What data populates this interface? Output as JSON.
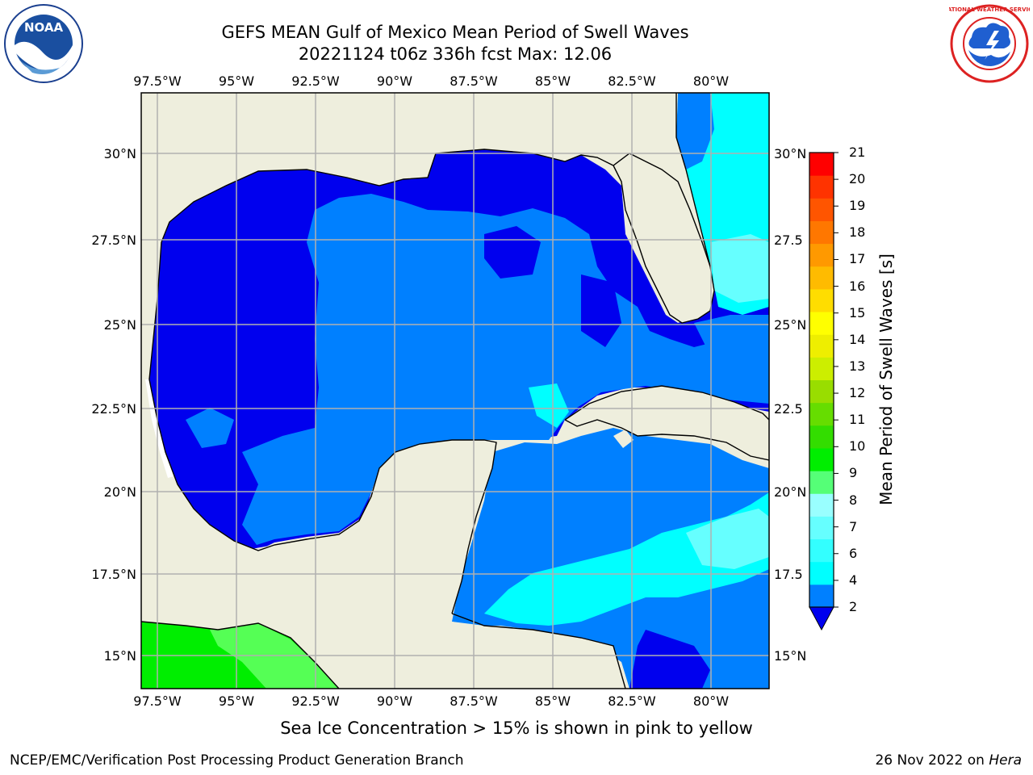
{
  "title": {
    "line1": "GEFS MEAN Gulf of Mexico Mean Period of Swell Waves",
    "line2": "20221124 t06z 336h fcst   Max: 12.06"
  },
  "map": {
    "lon_labels": [
      "97.5°W",
      "95°W",
      "92.5°W",
      "90°W",
      "87.5°W",
      "85°W",
      "82.5°W",
      "80°W"
    ],
    "lat_labels_left": [
      "30°N",
      "27.5°N",
      "25°N",
      "22.5°N",
      "20°N",
      "17.5°N",
      "15°N"
    ],
    "lat_labels_right": [
      "30°N",
      "27.5",
      "25°N",
      "22.5",
      "20°N",
      "17.5",
      "15°N"
    ],
    "colors": {
      "land": "#eeeedd",
      "water_dark": "#0000ee",
      "water_main": "#0080ff",
      "water_cyan": "#00ffff",
      "water_lightcyan": "#66ffff",
      "green": "#00ee00",
      "green_light": "#55ff55",
      "grid": "#b0b0b0"
    }
  },
  "colorbar": {
    "label": "Mean Period of Swell Waves [s]",
    "ticks": [
      "21",
      "20",
      "19",
      "18",
      "17",
      "16",
      "15",
      "14",
      "13",
      "12",
      "11",
      "10",
      "9",
      "8",
      "7",
      "6",
      "4",
      "2"
    ],
    "colors": [
      "#0080ff",
      "#00ffff",
      "#33ffff",
      "#66ffff",
      "#99ffff",
      "#55ff77",
      "#00ee00",
      "#33dd00",
      "#66dd00",
      "#99dd00",
      "#ccee00",
      "#eeee00",
      "#ffff00",
      "#ffdd00",
      "#ffbb00",
      "#ff9900",
      "#ff7700",
      "#ff5500",
      "#ff3300",
      "#ff0000"
    ]
  },
  "ice_note": "Sea Ice Concentration > 15% is shown in pink to yellow",
  "footer": {
    "left": "NCEP/EMC/Verification Post Processing Product Generation Branch",
    "right_date": "26 Nov 2022 on ",
    "right_host": "Hera"
  },
  "logos": {
    "left": "noaa-logo",
    "right": "national-weather-service-logo",
    "left_text": "NOAA",
    "right_text": "NATIONAL WEATHER SERVICE"
  }
}
